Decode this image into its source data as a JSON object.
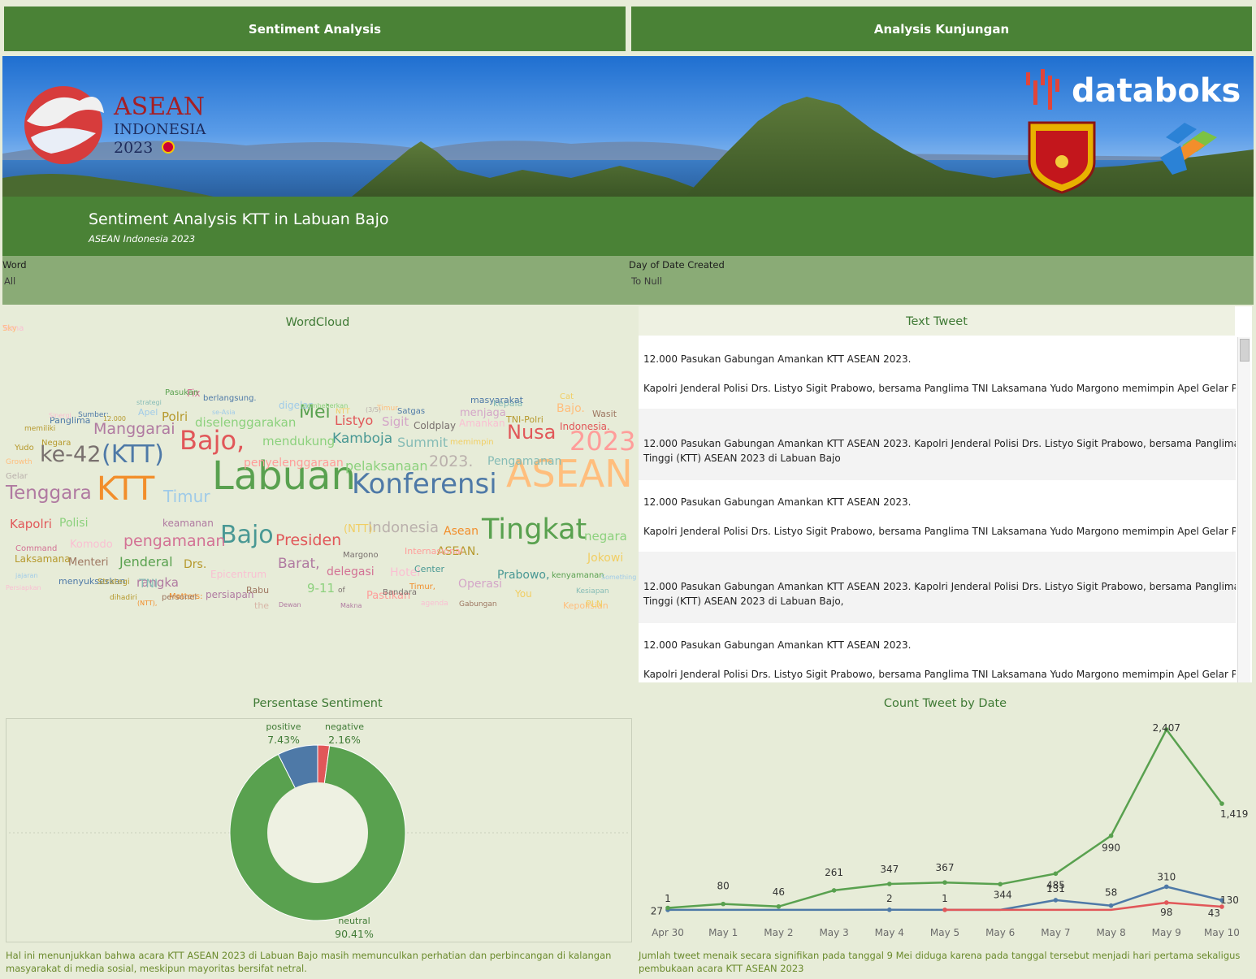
{
  "tabs": [
    {
      "label": "Sentiment Analysis"
    },
    {
      "label": "Analysis Kunjungan"
    }
  ],
  "banner": {
    "asean_logo": {
      "line1": "ASEAN",
      "line2": "INDONESIA",
      "line3": "2023"
    },
    "brand": "databoks"
  },
  "header": {
    "title": "Sentiment Analysis KTT in Labuan Bajo",
    "subtitle": "ASEAN Indonesia 2023"
  },
  "filters": {
    "word": {
      "label": "Word",
      "value": "All"
    },
    "date": {
      "label": "Day of Date Created",
      "value": "To Null"
    }
  },
  "wordcloud": {
    "title": "WordCloud",
    "words": [
      {
        "t": "Labuan",
        "c": "#59a14f"
      },
      {
        "t": "Konferensi",
        "c": "#4e79a7"
      },
      {
        "t": "ASEAN",
        "c": "#ffbe7d"
      },
      {
        "t": "KTT",
        "c": "#f28e2b"
      },
      {
        "t": "Tenggara",
        "c": "#b07aa1"
      },
      {
        "t": "Timur",
        "c": "#a0cbe8"
      },
      {
        "t": "Bajo,",
        "c": "#e15759"
      },
      {
        "t": "2023",
        "c": "#ff9d9a"
      },
      {
        "t": "ke-42",
        "c": "#79706e"
      },
      {
        "t": "(KTT)",
        "c": "#4e79a7"
      },
      {
        "t": "Tingkat",
        "c": "#59a14f"
      },
      {
        "t": "Bajo",
        "c": "#499894"
      },
      {
        "t": "Presiden",
        "c": "#e15759"
      },
      {
        "t": "pengamanan",
        "c": "#d37295"
      },
      {
        "t": "Nusa",
        "c": "#e15759"
      },
      {
        "t": "Mei",
        "c": "#59a14f"
      },
      {
        "t": "Manggarai",
        "c": "#b07aa1"
      },
      {
        "t": "Kamboja",
        "c": "#499894"
      },
      {
        "t": "Indonesia",
        "c": "#bab0ac"
      },
      {
        "t": "Barat,",
        "c": "#b07aa1"
      },
      {
        "t": "Jenderal",
        "c": "#59a14f"
      },
      {
        "t": "2023.",
        "c": "#bab0ac"
      },
      {
        "t": "Listyo",
        "c": "#e15759"
      },
      {
        "t": "mendukung",
        "c": "#8cd17d"
      },
      {
        "t": "Summit",
        "c": "#86bcb6"
      },
      {
        "t": "diselenggarakan",
        "c": "#8cd17d"
      },
      {
        "t": "Pengamanan",
        "c": "#86bcb6"
      },
      {
        "t": "pelaksanaan",
        "c": "#8cd17d"
      },
      {
        "t": "Kapolri",
        "c": "#e15759"
      },
      {
        "t": "Menteri",
        "c": "#9d7660"
      },
      {
        "t": "negara",
        "c": "#8cd17d"
      },
      {
        "t": "Polri",
        "c": "#b6992d"
      },
      {
        "t": "Sigit",
        "c": "#d4a6c8"
      },
      {
        "t": "penyelenggaraan",
        "c": "#ff9d9a"
      },
      {
        "t": "Polisi",
        "c": "#8cd17d"
      },
      {
        "t": "keamanan",
        "c": "#b07aa1"
      },
      {
        "t": "Komodo",
        "c": "#fabfd2"
      },
      {
        "t": "Asean",
        "c": "#f28e2b"
      },
      {
        "t": "ASEAN.",
        "c": "#b6992d"
      },
      {
        "t": "Drs.",
        "c": "#b6992d"
      },
      {
        "t": "delegasi",
        "c": "#d37295"
      },
      {
        "t": "Hotel",
        "c": "#fabfd2"
      },
      {
        "t": "9-11",
        "c": "#8cd17d"
      },
      {
        "t": "Prabowo,",
        "c": "#499894"
      },
      {
        "t": "rangka",
        "c": "#b07aa1"
      },
      {
        "t": "TNI",
        "c": "#86bcb6"
      },
      {
        "t": "Jokowi",
        "c": "#f1ce63"
      },
      {
        "t": "Epicentrum",
        "c": "#fabfd2"
      },
      {
        "t": "Bajo.",
        "c": "#ffbe7d"
      },
      {
        "t": "Indonesia.",
        "c": "#e15759"
      },
      {
        "t": "Fix",
        "c": "#d37295"
      },
      {
        "t": "digelar",
        "c": "#a0cbe8"
      },
      {
        "t": "Coldplay",
        "c": "#79706e"
      },
      {
        "t": "menjaga",
        "c": "#d4a6c8"
      },
      {
        "t": "Amankan",
        "c": "#fabfd2"
      },
      {
        "t": "kepala",
        "c": "#86bcb6"
      },
      {
        "t": "Operasi",
        "c": "#d4a6c8"
      },
      {
        "t": "(NTT).",
        "c": "#f1ce63"
      },
      {
        "t": "You",
        "c": "#f1ce63"
      },
      {
        "t": "persiapan",
        "c": "#b07aa1"
      },
      {
        "t": "Negara",
        "c": "#b6992d"
      },
      {
        "t": "Laksamana",
        "c": "#b6992d"
      },
      {
        "t": "Panglima",
        "c": "#4e79a7"
      },
      {
        "t": "Matters:",
        "c": "#f28e2b"
      },
      {
        "t": "TNI-Polri",
        "c": "#b6992d"
      },
      {
        "t": "masyarakat",
        "c": "#4e79a7"
      },
      {
        "t": "Wasit",
        "c": "#9d7660"
      },
      {
        "t": "Margono",
        "c": "#79706e"
      },
      {
        "t": "Internasional",
        "c": "#ff9d9a"
      },
      {
        "t": "Center",
        "c": "#499894"
      },
      {
        "t": "kenyamanan",
        "c": "#59a14f"
      },
      {
        "t": "Kepolisian",
        "c": "#ffbe7d"
      },
      {
        "t": "PLN",
        "c": "#f1ce63"
      },
      {
        "t": "the",
        "c": "#d7b5a6"
      },
      {
        "t": "Rabu",
        "c": "#9d7660"
      },
      {
        "t": "menyukseskan",
        "c": "#4e79a7"
      },
      {
        "t": "Strategi",
        "c": "#b6992d"
      },
      {
        "t": "personel",
        "c": "#9d7660"
      },
      {
        "t": "Command",
        "c": "#d37295"
      },
      {
        "t": "memimpin",
        "c": "#f1ce63"
      },
      {
        "t": "berlangsung.",
        "c": "#4e79a7"
      },
      {
        "t": "Pasukan",
        "c": "#59a14f"
      },
      {
        "t": "Apel",
        "c": "#a0cbe8"
      },
      {
        "t": "NTT",
        "c": "#f1ce63"
      },
      {
        "t": "Satgas",
        "c": "#4e79a7"
      },
      {
        "t": "Timur",
        "c": "#ffbe7d"
      },
      {
        "t": "Cat",
        "c": "#f1ce63"
      },
      {
        "t": "Yudo",
        "c": "#b6992d"
      },
      {
        "t": "Gelar",
        "c": "#bab0ac"
      },
      {
        "t": "jajaran",
        "c": "#a0cbe8"
      },
      {
        "t": "Persiapkan",
        "c": "#fabfd2"
      },
      {
        "t": "Sumber:",
        "c": "#4e79a7"
      },
      {
        "t": "12.000",
        "c": "#b6992d"
      },
      {
        "t": "Sinergi",
        "c": "#fabfd2"
      },
      {
        "t": "strategi",
        "c": "#86bcb6"
      },
      {
        "t": "se-Asia",
        "c": "#a0cbe8"
      },
      {
        "t": "membeberkan",
        "c": "#8cd17d"
      },
      {
        "t": "memiliki",
        "c": "#b6992d"
      },
      {
        "t": "Growth",
        "c": "#ffbe7d"
      },
      {
        "t": "Pastikan",
        "c": "#ff9d9a"
      },
      {
        "t": "of",
        "c": "#79706e"
      },
      {
        "t": "Bandara",
        "c": "#79706e"
      },
      {
        "t": "Timur,",
        "c": "#f28e2b"
      },
      {
        "t": "agenda",
        "c": "#fabfd2"
      },
      {
        "t": "Gabungan",
        "c": "#9d7660"
      },
      {
        "t": "Kesiapan",
        "c": "#86bcb6"
      },
      {
        "t": "Something",
        "c": "#a0cbe8"
      },
      {
        "t": "dihadiri",
        "c": "#b6992d"
      },
      {
        "t": "(NTT),",
        "c": "#f28e2b"
      },
      {
        "t": "Dewan",
        "c": "#b07aa1"
      },
      {
        "t": "Makna",
        "c": "#b07aa1"
      },
      {
        "t": "(3/5)",
        "c": "#bab0ac"
      },
      {
        "t": "Tema",
        "c": "#fabfd2"
      },
      {
        "t": "Sky",
        "c": "#ffbe7d"
      }
    ]
  },
  "tweets": {
    "title": "Text Tweet",
    "rows": [
      {
        "lines": [
          "12.000 Pasukan Gabungan Amankan KTT ASEAN 2023.",
          "",
          "Kapolri Jenderal Polisi Drs. Listyo Sigit Prabowo,  bersama Panglima TNI Laksamana Yudo Margono memimpin Apel Gelar Pasukan"
        ]
      },
      {
        "lines": [
          "12.000 Pasukan Gabungan Amankan KTT ASEAN 2023.  Kapolri Jenderal Polisi Drs. Listyo Sigit Prabowo,  bersama Panglima TNI La",
          "Tinggi (KTT) ASEAN 2023 di Labuan Bajo"
        ]
      },
      {
        "lines": [
          "12.000 Pasukan Gabungan Amankan KTT ASEAN 2023.",
          "",
          "Kapolri Jenderal Polisi Drs. Listyo Sigit Prabowo,  bersama Panglima TNI Laksamana Yudo Margono memimpin Apel Gelar Pasukan"
        ]
      },
      {
        "lines": [
          "12.000 Pasukan Gabungan Amankan KTT ASEAN 2023.  Kapolri Jenderal Polisi Drs. Listyo Sigit Prabowo,  bersama Panglima TNI La",
          "Tinggi (KTT) ASEAN 2023 di Labuan Bajo,"
        ]
      },
      {
        "lines": [
          "12.000 Pasukan Gabungan Amankan KTT ASEAN 2023.",
          "",
          "Kapolri Jenderal Polisi Drs. Listyo Sigit Prabowo,  bersama Panglima TNI Laksamana Yudo Margono memimpin Apel Gelar Pasukan"
        ]
      }
    ]
  },
  "sentiment": {
    "title": "Persentase Sentiment",
    "caption": "Hal ini menunjukkan bahwa acara KTT ASEAN 2023 di Labuan Bajo masih memunculkan perhatian dan perbincangan di kalangan masyarakat di media sosial, meskipun mayoritas bersifat netral."
  },
  "count": {
    "title": "Count Tweet by Date",
    "caption": "Jumlah tweet menaik secara signifikan pada tanggal 9 Mei diduga karena pada tanggal tersebut menjadi hari pertama sekaligus pembukaan acara KTT ASEAN 2023"
  },
  "chart_data": [
    {
      "type": "pie",
      "title": "Persentase Sentiment",
      "labels": [
        "neutral",
        "positive",
        "negative"
      ],
      "values": [
        90.41,
        7.43,
        2.16
      ],
      "value_labels": [
        "90.41%",
        "7.43%",
        "2.16%"
      ],
      "colors": [
        "#59a14f",
        "#4e79a7",
        "#e15759"
      ],
      "donut": true
    },
    {
      "type": "line",
      "title": "Count Tweet by Date",
      "categories": [
        "Apr 30",
        "May 1",
        "May 2",
        "May 3",
        "May 4",
        "May 5",
        "May 6",
        "May 7",
        "May 8",
        "May 9",
        "May 10"
      ],
      "series": [
        {
          "values": [
            27,
            80,
            46,
            261,
            347,
            367,
            344,
            485,
            990,
            2407,
            1419
          ],
          "color": "#59a14f"
        },
        {
          "values": [
            1,
            null,
            null,
            null,
            2,
            null,
            null,
            131,
            58,
            310,
            130
          ],
          "color": "#4e79a7"
        },
        {
          "values": [
            null,
            null,
            null,
            null,
            null,
            1,
            null,
            null,
            null,
            98,
            43
          ],
          "color": "#e15759"
        }
      ],
      "ylim": [
        0,
        2407
      ]
    }
  ]
}
